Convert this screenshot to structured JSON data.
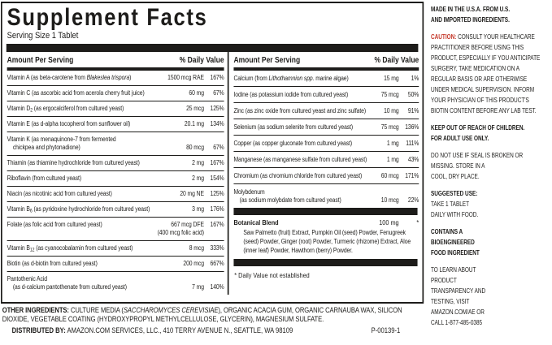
{
  "colors": {
    "ink": "#1d1c1a",
    "caution_red": "#c5392b"
  },
  "panel": {
    "title": "Supplement Facts",
    "serving": "Serving Size 1 Tablet"
  },
  "table": {
    "amount_header": "Amount Per Serving",
    "dv_header": "% Daily Value",
    "footnote": "* Daily Value not established",
    "left_rows": [
      {
        "name": "Vitamin A (as beta-carotene from <i>Blakeslea trispora</i>)",
        "amount": "1500 mcg RAE",
        "dv": "167%"
      },
      {
        "name": "Vitamin C (as ascorbic acid from acerola cherry fruit juice)",
        "amount": "60 mg",
        "dv": "67%"
      },
      {
        "name": "Vitamin D<sub>2</sub> (as ergocalciferol from cultured yeast)",
        "amount": "25 mcg",
        "dv": "125%"
      },
      {
        "name": "Vitamin E (as d-alpha tocopherol from sunflower oil)",
        "amount": "20.1 mg",
        "dv": "134%"
      },
      {
        "name": "Vitamin K (as menaquinone-7 from fermented<br>&nbsp;&nbsp;&nbsp;&nbsp;chickpea and phytonadione)",
        "amount": "80 mcg",
        "dv": "67%"
      },
      {
        "name": "Thiamin (as thiamine hydrochloride from cultured yeast)",
        "amount": "2 mg",
        "dv": "167%"
      },
      {
        "name": "Riboflavin (from cultured yeast)",
        "amount": "2 mg",
        "dv": "154%"
      },
      {
        "name": "Niacin (as nicotinic acid from cultured yeast)",
        "amount": "20 mg NE",
        "dv": "125%"
      },
      {
        "name": "Vitamin B<sub>6</sub> (as pyridoxine hydrochloride from cultured yeast)",
        "amount": "3 mg",
        "dv": "176%"
      },
      {
        "name": "Folate (as folic acid from cultured yeast)",
        "amount": "667 mcg DFE<br>(400 mcg folic acid)",
        "dv": "167%",
        "align": "start"
      },
      {
        "name": "Vitamin B<sub>12</sub> (as cyanocobalamin from cultured yeast)",
        "amount": "8 mcg",
        "dv": "333%"
      },
      {
        "name": "Biotin (as d-biotin from cultured yeast)",
        "amount": "200 mcg",
        "dv": "667%"
      },
      {
        "name": "Pantothenic Acid<br>&nbsp;&nbsp;&nbsp;&nbsp;(as d-calcium pantothenate from cultured yeast)",
        "amount": "7 mg",
        "dv": "140%"
      }
    ],
    "right_rows": [
      {
        "name": "Calcium (from <i>Lithothamnion spp.</i> marine algae)",
        "amount": "15 mg",
        "dv": "1%"
      },
      {
        "name": "Iodine (as potassium iodide from cultured yeast)",
        "amount": "75 mcg",
        "dv": "50%"
      },
      {
        "name": "Zinc (as zinc oxide from cultured yeast and zinc sulfate)",
        "amount": "10 mg",
        "dv": "91%"
      },
      {
        "name": "Selenium (as sodium selenite from cultured yeast)",
        "amount": "75 mcg",
        "dv": "136%"
      },
      {
        "name": "Copper (as copper gluconate from cultured yeast)",
        "amount": "1 mg",
        "dv": "111%"
      },
      {
        "name": "Manganese (as manganese sulfate from cultured yeast)",
        "amount": "1 mg",
        "dv": "43%"
      },
      {
        "name": "Chromium (as chromium chloride from cultured yeast)",
        "amount": "60 mcg",
        "dv": "171%"
      },
      {
        "name": "Molybdenum<br>&nbsp;&nbsp;&nbsp;&nbsp;(as sodium molybdate from cultured yeast)",
        "amount": "10 mcg",
        "dv": "22%"
      }
    ],
    "botanical": {
      "name": "Botanical Blend",
      "amount": "100 mg",
      "dv": "*",
      "ingredients": "Saw Palmetto (fruit) Extract, Pumpkin Oil (seed) Powder, Fenugreek (seed) Powder, Ginger (root) Powder, Turmeric (rhizome) Extract, Aloe (inner leaf) Powder, Hawthorn (berry) Powder."
    }
  },
  "footer": {
    "other_label": "OTHER INGREDIENTS:",
    "other_rest": " CULTURE MEDIA (<i>SACCHAROMYCES CEREVISIAE</i>), ORGANIC ACACIA GUM, ORGANIC CARNAUBA WAX, SILICON DIOXIDE, VEGETABLE COATING (HYDROXYPROPYL METHYLCELLULOSE, GLYCERIN), MAGNESIUM SULFATE.",
    "dist_label": "DISTRIBUTED BY:",
    "dist_text": " AMAZON.COM SERVICES, LLC., 410 TERRY AVENUE N., SEATTLE, WA 98109",
    "code": "P-00139-1"
  },
  "sidebar": {
    "paragraphs": [
      {
        "bold": true,
        "html": "MADE IN THE U.S.A. FROM U.S.<br>AND IMPORTED INGREDIENTS."
      },
      {
        "bold": false,
        "html": "<span class='red'>CAUTION:</span> CONSULT YOUR HEALTHCARE<br>PRACTITIONER BEFORE USING THIS<br>PRODUCT, ESPECIALLY IF YOU ANTICIPATE<br>SURGERY, TAKE MEDICATION ON A<br>REGULAR BASIS OR ARE OTHERWISE<br>UNDER MEDICAL SUPERVISION. INFORM<br>YOUR PHYSICIAN OF THIS PRODUCT'S<br>BIOTIN CONTENT BEFORE ANY LAB TEST."
      },
      {
        "bold": true,
        "html": "KEEP OUT OF REACH OF CHILDREN.<br>FOR ADULT USE ONLY."
      },
      {
        "bold": false,
        "html": "DO NOT USE IF SEAL IS BROKEN OR<br>MISSING. STORE IN A<br>COOL, DRY PLACE."
      },
      {
        "bold": false,
        "html": "<b>SUGGESTED USE:</b><br>TAKE 1 TABLET<br>DAILY WITH FOOD."
      },
      {
        "bold": true,
        "html": "CONTAINS A<br>BIOENGINEERED<br>FOOD INGREDIENT"
      },
      {
        "bold": false,
        "html": "TO LEARN ABOUT<br>PRODUCT<br>TRANSPARENCY AND<br>TESTING, VISIT<br>AMAZON.COM/AE OR<br>CALL 1-877-485-0385"
      }
    ]
  }
}
